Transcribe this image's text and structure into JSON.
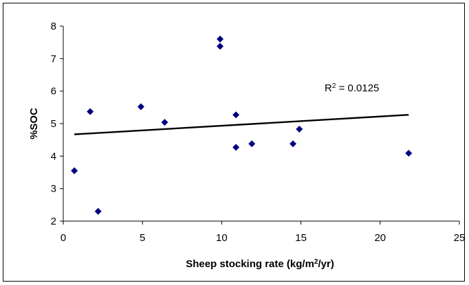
{
  "chart_data": {
    "type": "scatter",
    "title": "",
    "xlabel": "Sheep stocking rate (kg/m2/yr)",
    "xlabel_parts": {
      "pre": "Sheep stocking rate (kg/m",
      "sup": "2",
      "post": "/yr)"
    },
    "ylabel": "%SOC",
    "xlim": [
      0,
      25
    ],
    "ylim": [
      2,
      8
    ],
    "xticks": [
      0,
      5,
      10,
      15,
      20,
      25
    ],
    "yticks": [
      2,
      3,
      4,
      5,
      6,
      7,
      8
    ],
    "grid": false,
    "legend": "none",
    "marker": "diamond",
    "marker_color": "#00007f",
    "points": [
      {
        "x": 0.7,
        "y": 3.55
      },
      {
        "x": 1.7,
        "y": 5.37
      },
      {
        "x": 2.2,
        "y": 2.3
      },
      {
        "x": 4.9,
        "y": 5.52
      },
      {
        "x": 6.4,
        "y": 5.04
      },
      {
        "x": 9.9,
        "y": 7.6
      },
      {
        "x": 9.9,
        "y": 7.38
      },
      {
        "x": 10.9,
        "y": 5.27
      },
      {
        "x": 10.9,
        "y": 4.27
      },
      {
        "x": 11.9,
        "y": 4.38
      },
      {
        "x": 14.5,
        "y": 4.38
      },
      {
        "x": 14.9,
        "y": 4.83
      },
      {
        "x": 21.8,
        "y": 4.09
      }
    ],
    "trendline": {
      "x": [
        0.7,
        21.8
      ],
      "y": [
        4.67,
        5.27
      ],
      "color": "#000000"
    },
    "annotation": {
      "text": "R2 = 0.0125",
      "pre": "R",
      "sup": "2",
      "post": " = 0.0125"
    }
  }
}
